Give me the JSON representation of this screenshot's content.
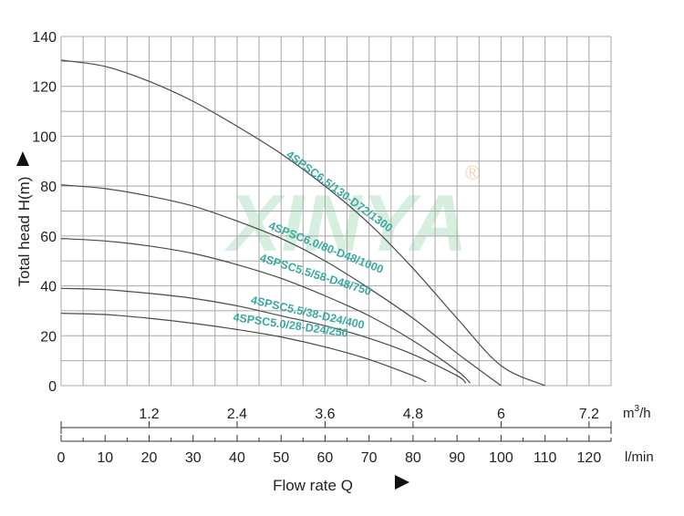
{
  "chart_data": {
    "type": "line",
    "title": "",
    "ylabel": "Total head H(m)",
    "xlabel": "Flow rate Q",
    "ylim": [
      0,
      140
    ],
    "xlim": [
      0,
      125
    ],
    "grid": true,
    "y_ticks": [
      "0",
      "20",
      "40",
      "60",
      "80",
      "100",
      "120",
      "140"
    ],
    "x_ticks_lmin": [
      "0",
      "10",
      "20",
      "30",
      "40",
      "50",
      "60",
      "70",
      "80",
      "90",
      "100",
      "110",
      "120"
    ],
    "x_unit_lmin": "l/min",
    "x_ticks_m3h": [
      {
        "label": "1.2",
        "value": 1.2
      },
      {
        "label": "2.4",
        "value": 2.4
      },
      {
        "label": "3.6",
        "value": 3.6
      },
      {
        "label": "4.8",
        "value": 4.8
      },
      {
        "label": "6",
        "value": 6.0
      },
      {
        "label": "7.2",
        "value": 7.2
      }
    ],
    "x_unit_m3h_base": "m",
    "x_unit_m3h_sup": "3",
    "x_unit_m3h_tail": "/h",
    "series": [
      {
        "name": "4SPSC6.5/130-D72/1300",
        "x": [
          0,
          10,
          20,
          30,
          40,
          50,
          60,
          70,
          80,
          90,
          100,
          110
        ],
        "y": [
          130.5,
          128,
          122,
          114,
          104,
          93,
          80,
          65,
          47,
          27,
          8,
          0
        ],
        "label_at": [
          51,
          92
        ]
      },
      {
        "name": "4SPSC6.0/80-D48/1000",
        "x": [
          0,
          10,
          20,
          30,
          40,
          50,
          60,
          70,
          80,
          90,
          100
        ],
        "y": [
          80.5,
          79,
          76,
          72,
          66,
          59,
          50,
          39,
          27,
          13,
          0
        ],
        "label_at": [
          47,
          63
        ]
      },
      {
        "name": "4SPSC5.5/58-D48/750",
        "x": [
          0,
          10,
          20,
          30,
          40,
          50,
          60,
          70,
          80,
          90,
          93
        ],
        "y": [
          59,
          58,
          56,
          53,
          48.5,
          43,
          36,
          28,
          18,
          6,
          1
        ],
        "label_at": [
          45,
          50
        ]
      },
      {
        "name": "4SPSC5.5/38-D24/400",
        "x": [
          0,
          10,
          20,
          30,
          40,
          50,
          60,
          70,
          80,
          90,
          92
        ],
        "y": [
          39,
          38.5,
          37,
          35,
          32,
          28,
          24,
          19,
          12.5,
          4,
          1
        ],
        "label_at": [
          43,
          33
        ]
      },
      {
        "name": "4SPSC5.0/28-D24/250",
        "x": [
          0,
          10,
          20,
          30,
          40,
          50,
          60,
          70,
          80,
          83
        ],
        "y": [
          29,
          28.5,
          27,
          25,
          22.5,
          19.5,
          15.5,
          10.5,
          4,
          1.5
        ],
        "label_at": [
          39,
          26
        ]
      }
    ],
    "watermark": "XINYA",
    "watermark_mark": "®",
    "colors": {
      "curve": "#4a4a4a",
      "grid": "#a8a8a8",
      "label": "#3aa9a0"
    }
  }
}
